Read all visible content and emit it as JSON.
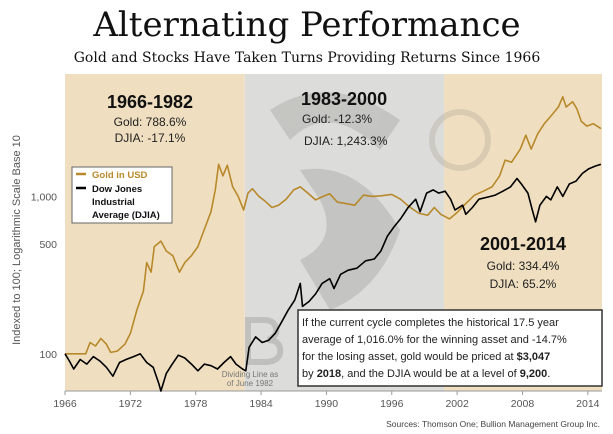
{
  "chart_data": {
    "type": "line",
    "title": "Alternating Performance",
    "subtitle": "Gold and Stocks Have Taken Turns Providing Returns Since 1966",
    "ylabel": "Indexed to 100; Logarithmic Scale Base 10",
    "xlabel": "",
    "yscale": "log",
    "ylim": [
      58,
      6000
    ],
    "xlim": [
      1966,
      2015.3
    ],
    "xticks": [
      "1966",
      "1972",
      "1978",
      "1984",
      "1990",
      "1996",
      "2002",
      "2008",
      "2014"
    ],
    "yticks": [
      {
        "v": 100,
        "label": "100"
      },
      {
        "v": 500,
        "label": "500"
      },
      {
        "v": 1000,
        "label": "1,000"
      }
    ],
    "regions": [
      {
        "from": 1966,
        "to": 1982.5,
        "color": "#efdfc0",
        "title": "1966-1982",
        "lines": [
          "Gold:  788.6%",
          "DJIA:  -17.1%"
        ]
      },
      {
        "from": 1982.5,
        "to": 2000.8,
        "color": "#dcdcda",
        "title": "1983-2000",
        "lines": [
          "Gold:  -12.3%",
          "DJIA:  1,243.3%"
        ]
      },
      {
        "from": 2000.8,
        "to": 2015.3,
        "color": "#efdfc0",
        "title": "2001-2014",
        "lines": [
          "Gold:  334.4%",
          "DJIA:  65.2%"
        ]
      }
    ],
    "series": [
      {
        "name": "Gold in USD",
        "color": "#b8892b",
        "points": [
          [
            1966,
            100
          ],
          [
            1967.9,
            100
          ],
          [
            1968.3,
            118
          ],
          [
            1968.8,
            112
          ],
          [
            1969.3,
            125
          ],
          [
            1969.8,
            115
          ],
          [
            1970.2,
            102
          ],
          [
            1970.8,
            104
          ],
          [
            1971.5,
            115
          ],
          [
            1972,
            135
          ],
          [
            1972.6,
            190
          ],
          [
            1973.2,
            250
          ],
          [
            1973.5,
            380
          ],
          [
            1973.9,
            330
          ],
          [
            1974.2,
            480
          ],
          [
            1974.8,
            520
          ],
          [
            1975.3,
            450
          ],
          [
            1975.9,
            420
          ],
          [
            1976.5,
            330
          ],
          [
            1977,
            380
          ],
          [
            1977.6,
            420
          ],
          [
            1978.2,
            480
          ],
          [
            1978.8,
            620
          ],
          [
            1979.4,
            800
          ],
          [
            1979.8,
            1100
          ],
          [
            1980.1,
            1600
          ],
          [
            1980.5,
            1350
          ],
          [
            1980.9,
            1580
          ],
          [
            1981.4,
            1150
          ],
          [
            1981.9,
            1000
          ],
          [
            1982.4,
            820
          ],
          [
            1982.8,
            1050
          ],
          [
            1983.2,
            1120
          ],
          [
            1983.8,
            1000
          ],
          [
            1984.4,
            930
          ],
          [
            1985,
            850
          ],
          [
            1985.6,
            880
          ],
          [
            1986.3,
            960
          ],
          [
            1987,
            1100
          ],
          [
            1987.6,
            1150
          ],
          [
            1988.3,
            1050
          ],
          [
            1989,
            950
          ],
          [
            1989.7,
            1000
          ],
          [
            1990.3,
            1040
          ],
          [
            1991,
            920
          ],
          [
            1991.8,
            900
          ],
          [
            1992.6,
            880
          ],
          [
            1993.4,
            1020
          ],
          [
            1994.2,
            1000
          ],
          [
            1995,
            1010
          ],
          [
            1996,
            1030
          ],
          [
            1996.8,
            960
          ],
          [
            1997.6,
            860
          ],
          [
            1998.5,
            780
          ],
          [
            1999.3,
            760
          ],
          [
            1999.9,
            850
          ],
          [
            2000.5,
            770
          ],
          [
            2001.3,
            720
          ],
          [
            2002,
            790
          ],
          [
            2002.8,
            900
          ],
          [
            2003.6,
            1020
          ],
          [
            2004.4,
            1080
          ],
          [
            2005.2,
            1150
          ],
          [
            2005.9,
            1350
          ],
          [
            2006.4,
            1700
          ],
          [
            2007,
            1650
          ],
          [
            2007.8,
            2000
          ],
          [
            2008.3,
            2450
          ],
          [
            2008.8,
            2000
          ],
          [
            2009.4,
            2500
          ],
          [
            2010,
            2900
          ],
          [
            2010.7,
            3300
          ],
          [
            2011.3,
            3700
          ],
          [
            2011.7,
            4300
          ],
          [
            2012,
            3700
          ],
          [
            2012.6,
            4000
          ],
          [
            2013,
            3600
          ],
          [
            2013.4,
            3000
          ],
          [
            2013.9,
            2800
          ],
          [
            2014.5,
            2900
          ],
          [
            2015.2,
            2700
          ]
        ]
      },
      {
        "name": "Dow Jones Industrial Average (DJIA)",
        "color": "#000000",
        "points": [
          [
            1966,
            100
          ],
          [
            1966.4,
            90
          ],
          [
            1966.8,
            80
          ],
          [
            1967.4,
            92
          ],
          [
            1968,
            86
          ],
          [
            1968.6,
            96
          ],
          [
            1969.2,
            90
          ],
          [
            1969.8,
            82
          ],
          [
            1970.4,
            72
          ],
          [
            1971,
            88
          ],
          [
            1971.6,
            92
          ],
          [
            1972.3,
            96
          ],
          [
            1972.9,
            100
          ],
          [
            1973.5,
            88
          ],
          [
            1974.1,
            82
          ],
          [
            1974.6,
            65
          ],
          [
            1974.8,
            58
          ],
          [
            1975.3,
            75
          ],
          [
            1975.8,
            85
          ],
          [
            1976.4,
            98
          ],
          [
            1977,
            94
          ],
          [
            1977.6,
            86
          ],
          [
            1978.2,
            78
          ],
          [
            1978.8,
            86
          ],
          [
            1979.4,
            84
          ],
          [
            1980,
            80
          ],
          [
            1980.6,
            88
          ],
          [
            1981.2,
            96
          ],
          [
            1981.7,
            86
          ],
          [
            1982.3,
            80
          ],
          [
            1982.6,
            78
          ],
          [
            1982.9,
            110
          ],
          [
            1983.5,
            128
          ],
          [
            1984.1,
            118
          ],
          [
            1984.7,
            122
          ],
          [
            1985.3,
            135
          ],
          [
            1985.9,
            160
          ],
          [
            1986.5,
            190
          ],
          [
            1987.1,
            220
          ],
          [
            1987.6,
            280
          ],
          [
            1987.8,
            200
          ],
          [
            1988.4,
            215
          ],
          [
            1989,
            240
          ],
          [
            1989.6,
            280
          ],
          [
            1990.3,
            300
          ],
          [
            1990.7,
            260
          ],
          [
            1991.3,
            320
          ],
          [
            1992,
            340
          ],
          [
            1992.8,
            350
          ],
          [
            1993.6,
            390
          ],
          [
            1994.4,
            400
          ],
          [
            1995,
            450
          ],
          [
            1995.6,
            560
          ],
          [
            1996.2,
            640
          ],
          [
            1996.8,
            720
          ],
          [
            1997.5,
            850
          ],
          [
            1998.2,
            960
          ],
          [
            1998.6,
            800
          ],
          [
            1999.2,
            1050
          ],
          [
            1999.8,
            1100
          ],
          [
            2000.3,
            1050
          ],
          [
            2000.9,
            1080
          ],
          [
            2001.4,
            960
          ],
          [
            2001.8,
            820
          ],
          [
            2002.5,
            880
          ],
          [
            2002.8,
            770
          ],
          [
            2003.4,
            850
          ],
          [
            2004,
            960
          ],
          [
            2004.8,
            990
          ],
          [
            2005.5,
            1020
          ],
          [
            2006.2,
            1080
          ],
          [
            2006.9,
            1150
          ],
          [
            2007.5,
            1300
          ],
          [
            2007.9,
            1200
          ],
          [
            2008.5,
            1050
          ],
          [
            2008.9,
            820
          ],
          [
            2009.2,
            690
          ],
          [
            2009.6,
            880
          ],
          [
            2010.2,
            1000
          ],
          [
            2010.6,
            950
          ],
          [
            2011.2,
            1150
          ],
          [
            2011.7,
            1000
          ],
          [
            2012.3,
            1200
          ],
          [
            2012.9,
            1250
          ],
          [
            2013.5,
            1400
          ],
          [
            2014.1,
            1500
          ],
          [
            2014.7,
            1560
          ],
          [
            2015.2,
            1600
          ]
        ]
      }
    ],
    "legend": {
      "placement": "upper-left",
      "items": [
        "Gold in USD",
        "Dow Jones",
        "Industrial",
        "Average (DJIA)"
      ]
    },
    "annotations": {
      "dividing_line": [
        "Dividing Line as",
        "of June 1982"
      ],
      "projection_box": {
        "line1": "If the current cycle completes the historical 17.5 year",
        "line2": "average of 1,016.0% for the winning asset and -14.7%",
        "line3_pre": "for the losing asset, gold would be priced at ",
        "line3_bold": "$3,047",
        "line4_pre": "by ",
        "line4_bold1": "2018",
        "line4_mid": ", and the DJIA would be at a level of ",
        "line4_bold2": "9,200",
        "line4_post": "."
      },
      "source": "Sources: Thomson One; Bullion Management Group Inc."
    },
    "watermark": "BMG"
  }
}
